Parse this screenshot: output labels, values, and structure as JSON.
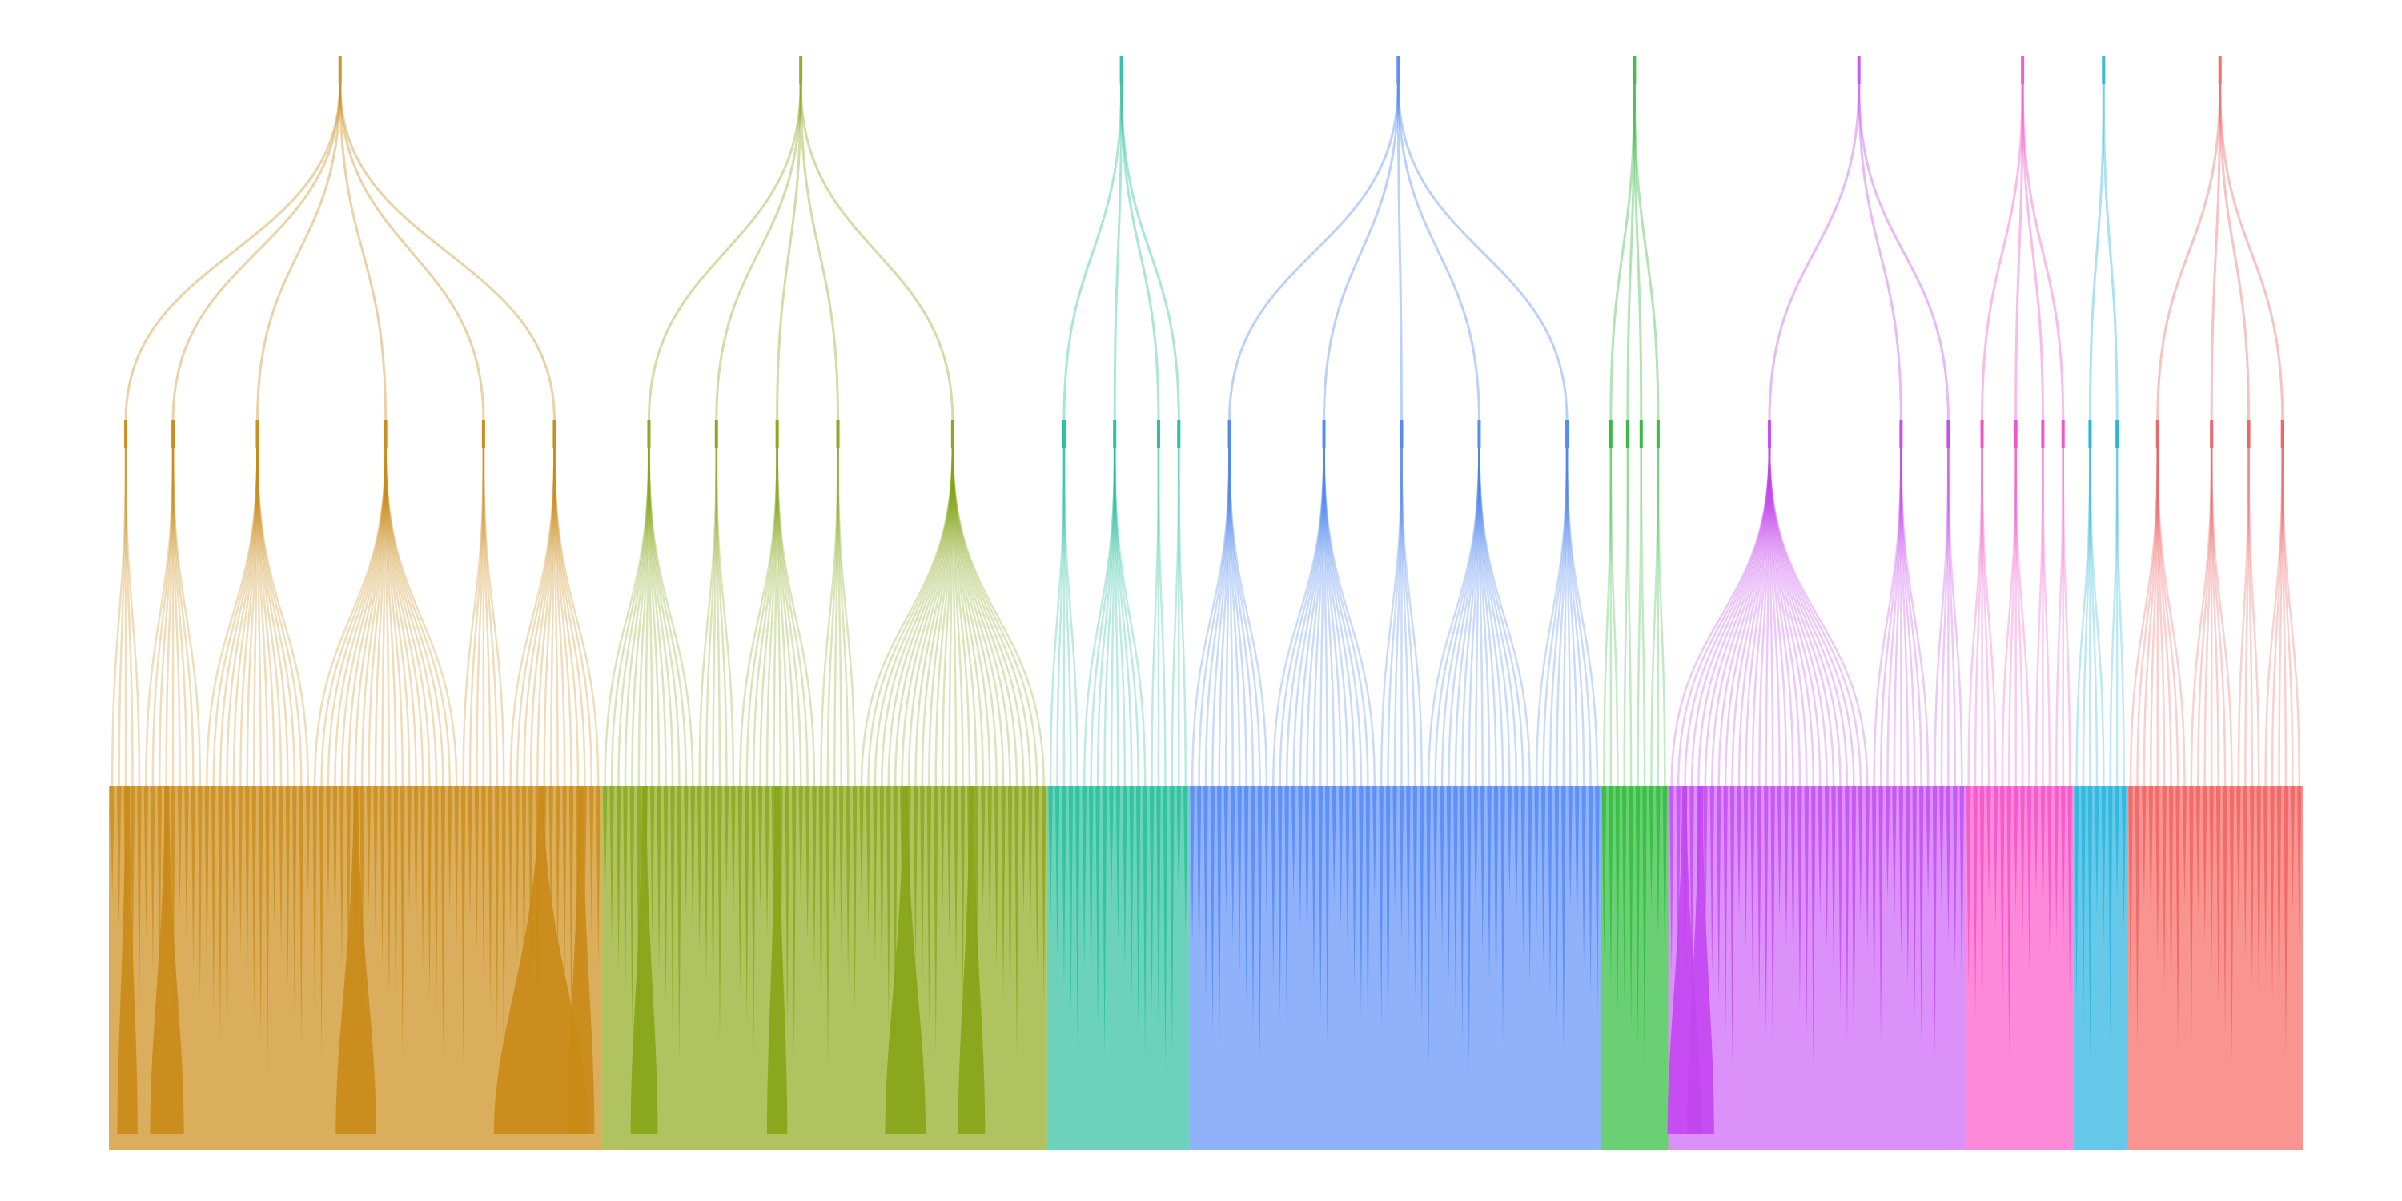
{
  "diagram": {
    "type": "hierarchical-tree-density",
    "levels": [
      "root",
      "branch",
      "leaf"
    ],
    "groups": [
      {
        "color": "#C98A16",
        "fill": "#D4A040",
        "branches": [
          {
            "leaves": 5,
            "stems": [
              {
                "pos": 0.55,
                "width": 3
              }
            ]
          },
          {
            "leaves": 9,
            "stems": [
              {
                "pos": 0.4,
                "width": 5
              }
            ]
          },
          {
            "leaves": 16,
            "stems": []
          },
          {
            "leaves": 22,
            "stems": [
              {
                "pos": 0.3,
                "width": 6
              }
            ]
          },
          {
            "leaves": 7,
            "stems": []
          },
          {
            "leaves": 14,
            "stems": [
              {
                "pos": 0.36,
                "width": 14
              },
              {
                "pos": 0.78,
                "width": 4
              }
            ]
          }
        ]
      },
      {
        "color": "#86A416",
        "fill": "#A3B844",
        "branches": [
          {
            "leaves": 14,
            "stems": [
              {
                "pos": 0.45,
                "width": 4
              }
            ]
          },
          {
            "leaves": 6,
            "stems": []
          },
          {
            "leaves": 12,
            "stems": [
              {
                "pos": 0.5,
                "width": 3
              }
            ]
          },
          {
            "leaves": 6,
            "stems": []
          },
          {
            "leaves": 28,
            "stems": [
              {
                "pos": 0.25,
                "width": 6
              },
              {
                "pos": 0.6,
                "width": 4
              }
            ]
          }
        ]
      },
      {
        "color": "#1FBE98",
        "fill": "#52CBAE",
        "branches": [
          {
            "leaves": 5,
            "stems": []
          },
          {
            "leaves": 10,
            "stems": []
          },
          {
            "leaves": 3,
            "stems": []
          },
          {
            "leaves": 3,
            "stems": []
          }
        ]
      },
      {
        "color": "#4D86F0",
        "fill": "#7DA5FA",
        "branches": [
          {
            "leaves": 12,
            "stems": []
          },
          {
            "leaves": 16,
            "stems": []
          },
          {
            "leaves": 7,
            "stems": []
          },
          {
            "leaves": 16,
            "stems": []
          },
          {
            "leaves": 10,
            "stems": []
          }
        ]
      },
      {
        "color": "#2DB83A",
        "fill": "#4FC85B",
        "branches": [
          {
            "leaves": 3,
            "stems": []
          },
          {
            "leaves": 2,
            "stems": []
          },
          {
            "leaves": 2,
            "stems": []
          },
          {
            "leaves": 3,
            "stems": []
          }
        ]
      },
      {
        "color": "#C246F0",
        "fill": "#D67CF8",
        "branches": [
          {
            "leaves": 30,
            "stems": [
              {
                "pos": 0.08,
                "width": 5
              },
              {
                "pos": 0.16,
                "width": 4
              }
            ]
          },
          {
            "leaves": 9,
            "stems": []
          },
          {
            "leaves": 5,
            "stems": []
          }
        ]
      },
      {
        "color": "#F24BC8",
        "fill": "#FB76D2",
        "branches": [
          {
            "leaves": 5,
            "stems": []
          },
          {
            "leaves": 5,
            "stems": []
          },
          {
            "leaves": 3,
            "stems": []
          },
          {
            "leaves": 3,
            "stems": []
          }
        ]
      },
      {
        "color": "#21B3D8",
        "fill": "#4CBFE6",
        "branches": [
          {
            "leaves": 5,
            "stems": []
          },
          {
            "leaves": 3,
            "stems": []
          }
        ]
      },
      {
        "color": "#EE5F5F",
        "fill": "#F7837E",
        "branches": [
          {
            "leaves": 9,
            "stems": []
          },
          {
            "leaves": 7,
            "stems": []
          },
          {
            "leaves": 4,
            "stems": []
          },
          {
            "leaves": 6,
            "stems": []
          }
        ]
      }
    ]
  }
}
